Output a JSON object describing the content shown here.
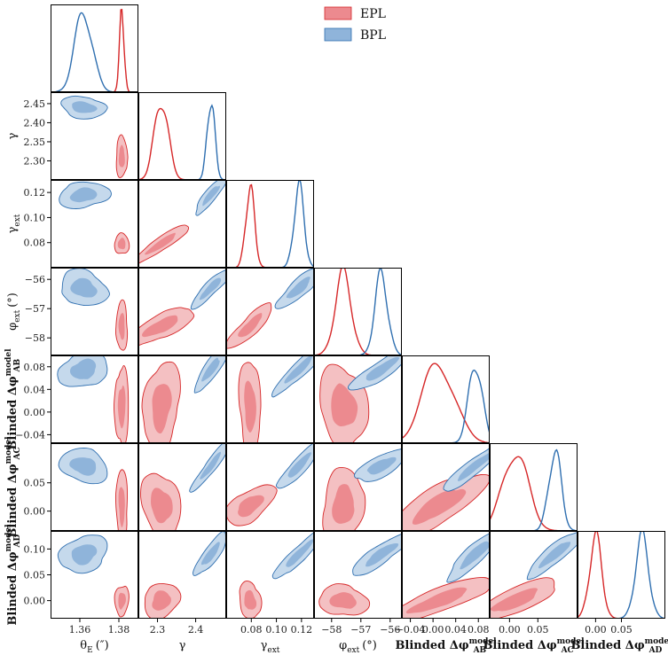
{
  "chart_data": {
    "type": "corner",
    "params": [
      {
        "key": "thetaE",
        "label": "θ",
        "sub": "E",
        "sup": "",
        "unit": "(″)",
        "bold": false,
        "range": [
          1.345,
          1.39
        ],
        "ticks": [
          {
            "v": 1.36,
            "t": "1.36"
          },
          {
            "v": 1.38,
            "t": "1.38"
          }
        ]
      },
      {
        "key": "gamma",
        "label": "γ",
        "sub": "",
        "sup": "",
        "unit": "",
        "bold": false,
        "range": [
          2.25,
          2.48
        ],
        "ticks": [
          {
            "v": 2.3,
            "t": "2.3"
          },
          {
            "v": 2.4,
            "t": "2.4"
          }
        ]
      },
      {
        "key": "gamma_ext",
        "label": "γ",
        "sub": "ext",
        "sup": "",
        "unit": "",
        "bold": false,
        "range": [
          0.06,
          0.13
        ],
        "ticks": [
          {
            "v": 0.08,
            "t": "0.08"
          },
          {
            "v": 0.1,
            "t": "0.10"
          },
          {
            "v": 0.12,
            "t": "0.12"
          }
        ]
      },
      {
        "key": "phi_ext",
        "label": "φ",
        "sub": "ext",
        "sup": "",
        "unit": "(°)",
        "bold": false,
        "range": [
          -58.6,
          -55.6
        ],
        "ticks": [
          {
            "v": -58,
            "t": "−58"
          },
          {
            "v": -57,
            "t": "−57"
          },
          {
            "v": -56,
            "t": "−56"
          }
        ]
      },
      {
        "key": "dphi_AB",
        "label": "Blinded Δφ",
        "sub": "AB",
        "sup": "model",
        "unit": "",
        "bold": true,
        "range": [
          -0.055,
          0.1
        ],
        "ticks": [
          {
            "v": -0.04,
            "t": "−0.04"
          },
          {
            "v": 0.0,
            "t": "0.00"
          },
          {
            "v": 0.04,
            "t": "0.04"
          },
          {
            "v": 0.08,
            "t": "0.08"
          }
        ]
      },
      {
        "key": "dphi_AC",
        "label": "Blinded Δφ",
        "sub": "AC",
        "sup": "model",
        "unit": "",
        "bold": true,
        "range": [
          -0.035,
          0.12
        ],
        "ticks": [
          {
            "v": 0.0,
            "t": "0.00"
          },
          {
            "v": 0.05,
            "t": "0.05"
          }
        ]
      },
      {
        "key": "dphi_AD",
        "label": "Blinded Δφ",
        "sub": "AD",
        "sup": "model",
        "unit": "",
        "bold": true,
        "range": [
          -0.035,
          0.135
        ],
        "ticks": [
          {
            "v": 0.0,
            "t": "0.00"
          },
          {
            "v": 0.05,
            "t": "0.05"
          }
        ]
      }
    ],
    "y_tick_overrides": {
      "gamma": [
        {
          "v": 2.3,
          "t": "2.30"
        },
        {
          "v": 2.35,
          "t": "2.35"
        },
        {
          "v": 2.4,
          "t": "2.40"
        },
        {
          "v": 2.45,
          "t": "2.45"
        }
      ],
      "dphi_AD": [
        {
          "v": 0.0,
          "t": "0.00"
        },
        {
          "v": 0.05,
          "t": "0.05"
        },
        {
          "v": 0.1,
          "t": "0.10"
        }
      ]
    },
    "series": [
      {
        "name": "EPL",
        "color": "#d62728",
        "fill_outer": "#f4c0c2",
        "fill_inner": "#ec8a8f",
        "mean": {
          "thetaE": 1.3815,
          "gamma": 2.31,
          "gamma_ext": 0.079,
          "phi_ext": -57.6,
          "dphi_AB": 0.01,
          "dphi_AC": 0.01,
          "dphi_AD": 0.0
        }
      },
      {
        "name": "BPL",
        "color": "#2f6fb0",
        "fill_outer": "#c5d9ec",
        "fill_inner": "#8fb4da",
        "mean": {
          "thetaE": 1.362,
          "gamma": 2.44,
          "gamma_ext": 0.118,
          "phi_ext": -56.3,
          "dphi_AB": 0.075,
          "dphi_AC": 0.08,
          "dphi_AD": 0.09
        }
      }
    ],
    "legend": {
      "position": "top-center",
      "entries": [
        "EPL",
        "BPL"
      ]
    }
  }
}
